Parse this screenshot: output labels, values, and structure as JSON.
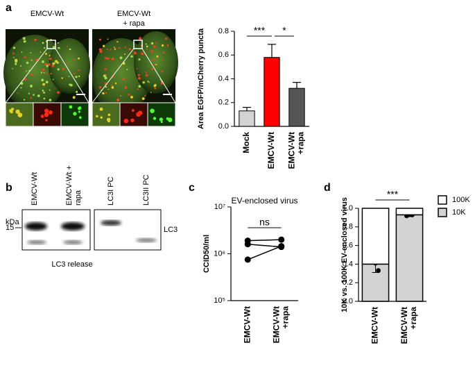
{
  "panel_letters": [
    "a",
    "b",
    "c",
    "d"
  ],
  "micrographs": {
    "labels": [
      "EMCV-Wt",
      "EMCV-Wt",
      "+ rapa"
    ]
  },
  "blot": {
    "lanes": [
      "EMCV-Wt",
      "EMCV-Wt +",
      "rapa",
      "LC3I PC",
      "LC3II PC"
    ],
    "kda": "kDa",
    "marker": "15",
    "band": "LC3",
    "caption": "LC3 release"
  },
  "chart_data": [
    {
      "type": "bar",
      "ylabel": "Area EGFP/mCherry puncta",
      "categories": [
        "Mock",
        "EMCV-Wt",
        "EMCV-Wt +rapa"
      ],
      "values": [
        0.13,
        0.58,
        0.32
      ],
      "errors": [
        0.03,
        0.11,
        0.05
      ],
      "colors": [
        "#d3d3d3",
        "#ff0000",
        "#555555"
      ],
      "ylim": [
        0,
        0.8
      ],
      "yticks": [
        {
          "value": 0,
          "label": "0.0"
        },
        {
          "value": 0.2,
          "label": "0.2"
        },
        {
          "value": 0.4,
          "label": "0.4"
        },
        {
          "value": 0.6,
          "label": "0.6"
        },
        {
          "value": 0.8,
          "label": "0.8"
        }
      ],
      "annotations": [
        "***",
        "*"
      ]
    },
    {
      "type": "line",
      "title": "EV-enclosed virus",
      "ylabel": "CCID50/ml",
      "log_scale": true,
      "categories": [
        "EMCV-Wt",
        "EMCV-Wt +rapa"
      ],
      "series": [
        {
          "color": "#000000",
          "values": [
            1900000,
            2000000
          ]
        },
        {
          "color": "#000000",
          "values": [
            1600000,
            1400000
          ]
        },
        {
          "color": "#000000",
          "values": [
            750000,
            1450000
          ]
        }
      ],
      "ylim": [
        100000,
        10000000
      ],
      "yticks": [
        {
          "value": 100000,
          "label": "10⁵"
        },
        {
          "value": 1000000,
          "label": "10⁶"
        },
        {
          "value": 10000000,
          "label": "10⁷"
        }
      ],
      "annotations": [
        "ns"
      ]
    },
    {
      "type": "stacked_bar",
      "ylabel": "10K vs. 100K EV-enclosed virus",
      "categories": [
        "EMCV-Wt",
        "EMCV-Wt +rapa"
      ],
      "series": [
        {
          "name": "10K",
          "color": "#d3d3d3",
          "values": [
            0.4,
            0.93
          ],
          "errors": [
            0.09,
            0.02
          ],
          "points": [
            [
              0.52,
              0.41,
              0.33
            ],
            [
              0.92,
              0.94,
              0.93
            ]
          ]
        },
        {
          "name": "100K",
          "color": "#ffffff",
          "values": [
            0.6,
            0.07
          ]
        }
      ],
      "ylim": [
        0,
        1
      ],
      "yticks": [
        {
          "value": 0,
          "label": "0.0"
        },
        {
          "value": 0.2,
          "label": "0.2"
        },
        {
          "value": 0.4,
          "label": "0.4"
        },
        {
          "value": 0.6,
          "label": "0.6"
        },
        {
          "value": 0.8,
          "label": "0.8"
        },
        {
          "value": 1,
          "label": "1.0"
        }
      ],
      "annotations": [
        "***"
      ]
    }
  ]
}
